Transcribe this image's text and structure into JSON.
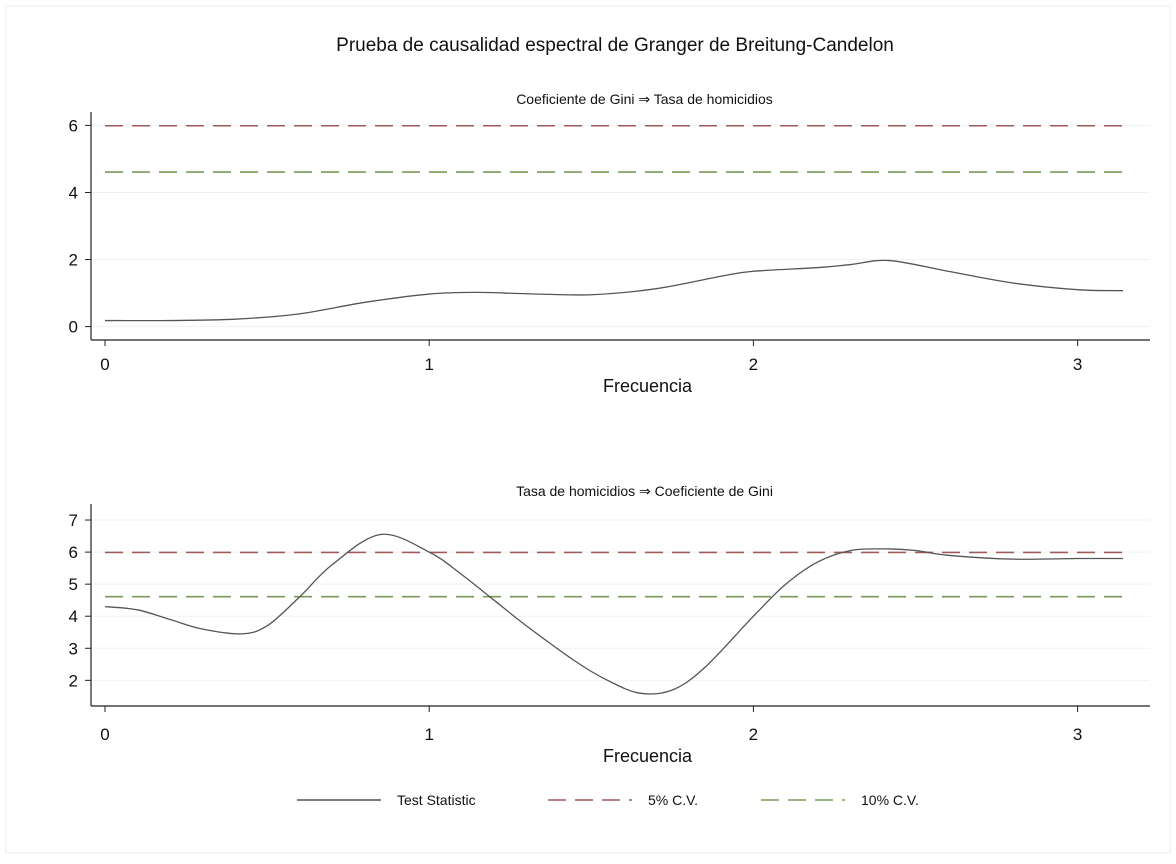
{
  "chart_data": {
    "title": "Prueba de causalidad espectral de Granger de Breitung-Candelon",
    "legend": {
      "placement": "bottom",
      "entries": [
        {
          "name": "Test Statistic",
          "color": "#555555",
          "dash": "solid"
        },
        {
          "name": "5% C.V.",
          "color": "#a05a5a",
          "dash": "dashed"
        },
        {
          "name": "10% C.V.",
          "color": "#7a9a5a",
          "dash": "dashed"
        }
      ]
    },
    "panels": [
      {
        "type": "line",
        "subtitle": "Coeficiente de Gini ⇒ Tasa de homicidios",
        "xlabel": "Frecuencia",
        "ylabel": "",
        "xlim": [
          0,
          3.14
        ],
        "ylim": [
          -0.4,
          6.4
        ],
        "xticks": [
          0,
          1,
          2,
          3
        ],
        "yticks": [
          0,
          2,
          4,
          6
        ],
        "grid": true,
        "critical_values": {
          "cv5": 5.99,
          "cv10": 4.61
        },
        "series": [
          {
            "x": [
              0,
              0.2,
              0.4,
              0.6,
              0.8,
              1.0,
              1.15,
              1.3,
              1.5,
              1.7,
              1.9,
              2.0,
              2.2,
              2.3,
              2.42,
              2.6,
              2.8,
              3.0,
              3.14
            ],
            "y": [
              0.18,
              0.18,
              0.22,
              0.38,
              0.72,
              0.97,
              1.02,
              0.98,
              0.95,
              1.13,
              1.5,
              1.65,
              1.76,
              1.85,
              1.97,
              1.65,
              1.3,
              1.1,
              1.07
            ]
          }
        ]
      },
      {
        "type": "line",
        "subtitle": "Tasa de homicidios ⇒ Coeficiente de Gini",
        "xlabel": "Frecuencia",
        "ylabel": "",
        "xlim": [
          0,
          3.14
        ],
        "ylim": [
          1.2,
          7.5
        ],
        "xticks": [
          0,
          1,
          2,
          3
        ],
        "yticks": [
          2,
          3,
          4,
          5,
          6,
          7
        ],
        "grid": true,
        "critical_values": {
          "cv5": 5.99,
          "cv10": 4.61
        },
        "series": [
          {
            "x": [
              0,
              0.1,
              0.2,
              0.3,
              0.42,
              0.5,
              0.6,
              0.7,
              0.85,
              1.0,
              1.1,
              1.2,
              1.3,
              1.45,
              1.55,
              1.65,
              1.75,
              1.85,
              2.0,
              2.1,
              2.2,
              2.3,
              2.4,
              2.5,
              2.6,
              2.8,
              3.0,
              3.14
            ],
            "y": [
              4.3,
              4.2,
              3.9,
              3.6,
              3.45,
              3.7,
              4.6,
              5.6,
              6.55,
              6.0,
              5.3,
              4.5,
              3.7,
              2.6,
              2.0,
              1.6,
              1.7,
              2.4,
              4.0,
              5.0,
              5.7,
              6.05,
              6.1,
              6.05,
              5.9,
              5.78,
              5.8,
              5.8
            ]
          }
        ]
      }
    ]
  }
}
